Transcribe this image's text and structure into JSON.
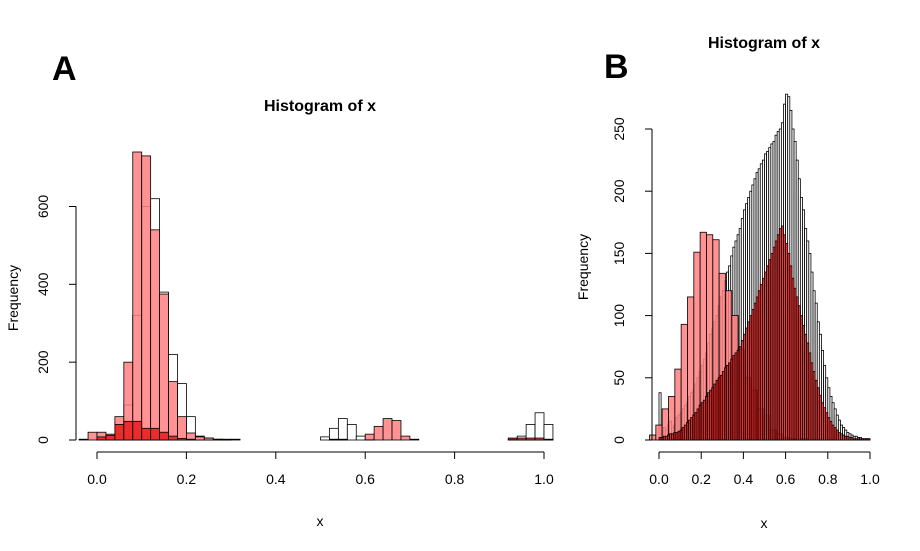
{
  "chart_data": [
    {
      "type": "histogram",
      "panel_label": "A",
      "title": "Histogram of x",
      "xlabel": "x",
      "ylabel": "Frequency",
      "xlim": [
        -0.05,
        1.0
      ],
      "ylim": [
        0,
        760
      ],
      "x_ticks": [
        0.0,
        0.2,
        0.4,
        0.6,
        0.8,
        1.0
      ],
      "x_tick_labels": [
        "0.0",
        "0.2",
        "0.4",
        "0.6",
        "0.8",
        "1.0"
      ],
      "y_ticks": [
        0,
        200,
        400,
        600
      ],
      "y_tick_labels": [
        "0",
        "200",
        "400",
        "600"
      ],
      "series": [
        {
          "style": "outline",
          "bin_width": 0.02,
          "bin_start": 0.04,
          "counts": [
            15,
            90,
            320,
            600,
            620,
            380,
            220,
            145,
            60,
            10,
            5,
            2,
            1,
            0,
            0,
            0,
            0,
            0,
            0,
            0,
            0,
            0,
            0,
            8,
            30,
            55,
            40,
            10,
            2,
            0,
            0,
            0,
            0,
            0,
            0,
            0,
            0,
            0,
            0,
            0,
            0,
            0,
            0,
            0,
            2,
            10,
            40,
            70,
            40,
            10
          ]
        },
        {
          "style": "light-red",
          "bin_width": 0.02,
          "bin_start": -0.06,
          "counts": [
            0,
            2,
            20,
            20,
            15,
            60,
            200,
            740,
            730,
            540,
            375,
            150,
            60,
            18,
            8,
            5,
            2,
            2,
            2,
            0,
            0,
            0,
            0,
            0,
            0,
            0,
            0,
            0,
            0,
            0,
            0,
            0,
            0,
            15,
            35,
            55,
            50,
            10,
            2,
            0,
            0,
            0,
            0,
            0,
            0,
            0,
            0,
            0,
            0,
            0,
            0,
            0,
            0,
            2,
            30,
            50,
            15,
            5
          ]
        },
        {
          "style": "red",
          "bin_width": 0.02,
          "bin_start": 0.0,
          "counts": [
            8,
            12,
            40,
            48,
            48,
            30,
            30,
            20,
            10,
            4,
            2,
            0,
            0,
            0,
            0,
            0,
            0,
            0,
            0,
            0,
            0,
            0,
            0,
            0,
            0,
            0,
            2,
            2,
            0,
            0,
            0,
            0,
            0,
            0,
            0,
            0,
            0,
            0,
            0,
            0,
            0,
            0,
            0,
            0,
            0,
            0,
            5,
            5,
            5,
            5
          ]
        }
      ]
    },
    {
      "type": "histogram",
      "panel_label": "B",
      "title": "Histogram of x",
      "xlabel": "x",
      "ylabel": "Frequency",
      "xlim": [
        -0.05,
        1.03
      ],
      "ylim": [
        0,
        280
      ],
      "x_ticks": [
        0.0,
        0.2,
        0.4,
        0.6,
        0.8,
        1.0
      ],
      "x_tick_labels": [
        "0.0",
        "0.2",
        "0.4",
        "0.6",
        "0.8",
        "1.0"
      ],
      "y_ticks": [
        0,
        50,
        100,
        150,
        200,
        250
      ],
      "y_tick_labels": [
        "0",
        "50",
        "100",
        "150",
        "200",
        "250"
      ],
      "series": [
        {
          "style": "outline",
          "bin_width": 0.01,
          "bin_start": 0.0,
          "counts": [
            38,
            5,
            10,
            8,
            12,
            15,
            10,
            12,
            18,
            20,
            22,
            25,
            28,
            30,
            35,
            38,
            40,
            45,
            50,
            55,
            60,
            65,
            70,
            78,
            85,
            90,
            95,
            100,
            108,
            115,
            120,
            128,
            135,
            140,
            148,
            155,
            160,
            165,
            170,
            178,
            185,
            190,
            195,
            200,
            205,
            210,
            215,
            218,
            222,
            225,
            230,
            232,
            235,
            238,
            240,
            245,
            248,
            250,
            255,
            270,
            278,
            276,
            265,
            250,
            240,
            225,
            210,
            195,
            185,
            170,
            160,
            150,
            135,
            120,
            110,
            95,
            85,
            72,
            60,
            50,
            42,
            35,
            30,
            25,
            20,
            16,
            12,
            10,
            8,
            6,
            5,
            4,
            3,
            3,
            2,
            2,
            1,
            1,
            1,
            1
          ]
        },
        {
          "style": "light-red",
          "bin_width": 0.03,
          "bin_start": -0.045,
          "counts": [
            4,
            12,
            25,
            35,
            57,
            93,
            115,
            151,
            167,
            165,
            161,
            134,
            120,
            100,
            73,
            50,
            40,
            25,
            20,
            8,
            5,
            2,
            1,
            1,
            1,
            0,
            0,
            0,
            0,
            0,
            0,
            0,
            0,
            0,
            0,
            0
          ]
        },
        {
          "style": "red",
          "bin_width": 0.01,
          "bin_start": 0.0,
          "counts": [
            2,
            2,
            3,
            3,
            4,
            5,
            5,
            6,
            6,
            7,
            8,
            10,
            12,
            14,
            16,
            18,
            20,
            22,
            25,
            28,
            30,
            32,
            35,
            38,
            40,
            42,
            45,
            48,
            50,
            52,
            55,
            58,
            60,
            62,
            65,
            68,
            70,
            72,
            75,
            80,
            85,
            90,
            95,
            100,
            105,
            110,
            115,
            120,
            125,
            130,
            135,
            140,
            145,
            150,
            155,
            160,
            165,
            170,
            172,
            165,
            158,
            150,
            140,
            130,
            122,
            115,
            108,
            100,
            92,
            85,
            78,
            70,
            62,
            55,
            48,
            42,
            36,
            30,
            26,
            22,
            18,
            15,
            12,
            10,
            8,
            6,
            5,
            4,
            3,
            3,
            2,
            2,
            1,
            1,
            1,
            1,
            1,
            1,
            1,
            1
          ]
        }
      ]
    }
  ],
  "colors": {
    "outline_fill": "#ffffff",
    "light_red_fill": "#ff8080",
    "red_fill": "#e61a1a",
    "stroke": "#000000"
  }
}
